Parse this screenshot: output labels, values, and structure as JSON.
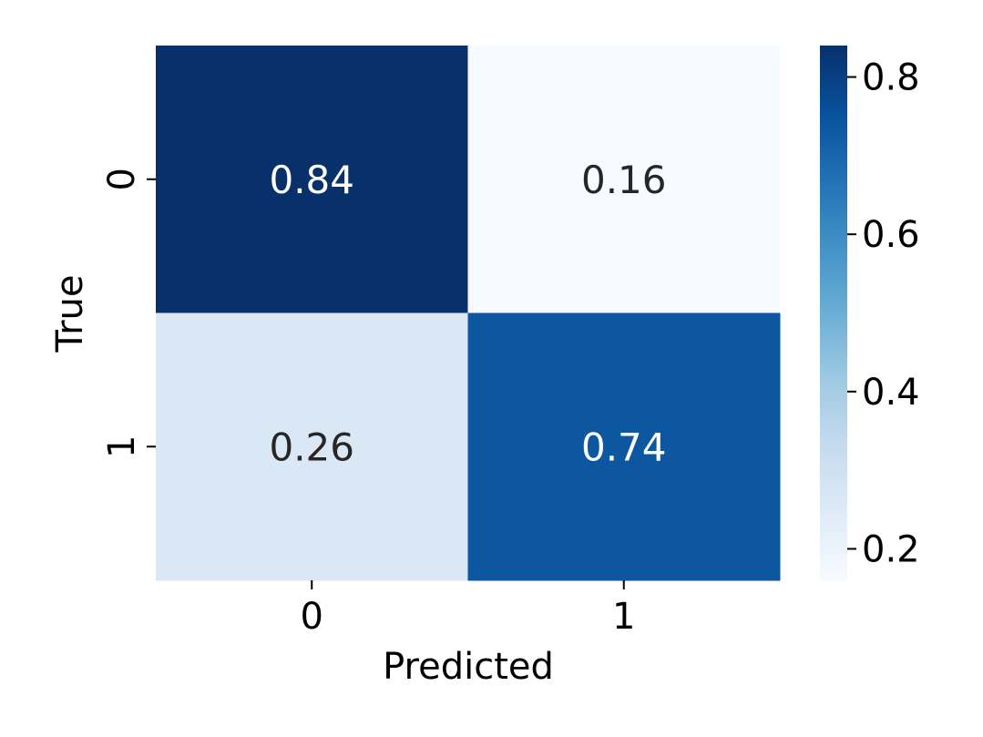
{
  "chart_data": {
    "type": "heatmap",
    "title": "",
    "xlabel": "Predicted",
    "ylabel": "True",
    "x_categories": [
      "0",
      "1"
    ],
    "y_categories": [
      "0",
      "1"
    ],
    "values": [
      [
        0.84,
        0.16
      ],
      [
        0.26,
        0.74
      ]
    ],
    "value_labels": [
      [
        "0.84",
        "0.16"
      ],
      [
        "0.26",
        "0.74"
      ]
    ],
    "colorbar": {
      "range": [
        0.16,
        0.84
      ],
      "ticks": [
        0.2,
        0.4,
        0.6,
        0.8
      ],
      "tick_labels": [
        "0.2",
        "0.4",
        "0.6",
        "0.8"
      ],
      "colormap": "Blues",
      "placement": "right"
    },
    "colors": {
      "low": "#f7fbff",
      "high": "#08306b",
      "text_dark": "#262626",
      "text_light": "#ffffff"
    }
  }
}
